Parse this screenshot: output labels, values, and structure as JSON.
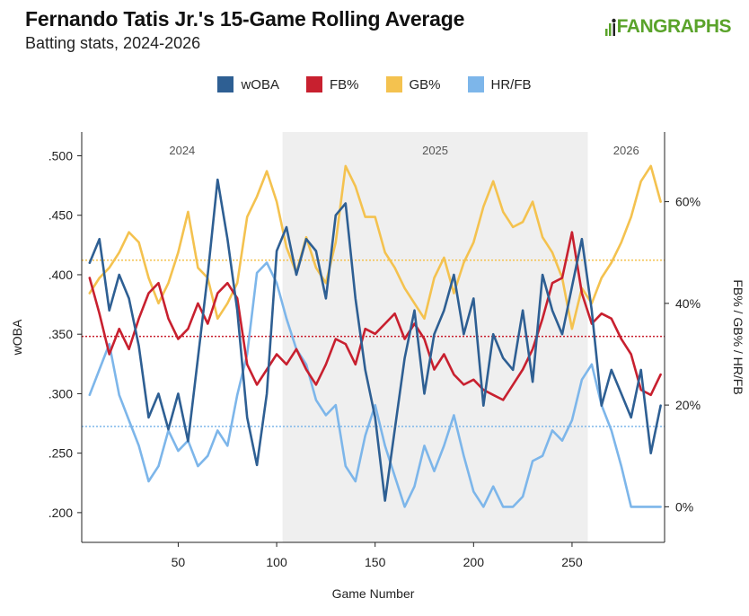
{
  "header": {
    "title": "Fernando Tatis Jr.'s 15-Game Rolling Average",
    "subtitle": "Batting stats, 2024-2026",
    "logo_text": "FANGRAPHS"
  },
  "colors": {
    "woba": "#2e5f93",
    "fb": "#c8202f",
    "gb": "#f4c24f",
    "hrfb": "#7db6ea",
    "shade": "#efefef",
    "logo": "#5aa32a"
  },
  "chart_data": {
    "type": "line",
    "xlabel": "Game Number",
    "ylabel_left": "wOBA",
    "ylabel_right": "FB% / GB% / HR/FB",
    "xlim": [
      1,
      297
    ],
    "ylim_left": [
      0.175,
      0.52
    ],
    "ylim_right": [
      -0.07,
      0.737
    ],
    "x_ticks": [
      50,
      100,
      150,
      200,
      250
    ],
    "y_ticks_left": [
      ".200",
      ".250",
      ".300",
      ".350",
      ".400",
      ".450",
      ".500"
    ],
    "y_tick_values_left": [
      0.2,
      0.25,
      0.3,
      0.35,
      0.4,
      0.45,
      0.5
    ],
    "y_ticks_right": [
      "0%",
      "20%",
      "40%",
      "60%"
    ],
    "y_tick_values_right": [
      0,
      0.2,
      0.4,
      0.6
    ],
    "grid": false,
    "legend_position": "top-center",
    "seasons": [
      {
        "label": "2024",
        "start": 1,
        "end": 103,
        "shaded": false
      },
      {
        "label": "2025",
        "start": 103,
        "end": 258,
        "shaded": true
      },
      {
        "label": "2026",
        "start": 258,
        "end": 297,
        "shaded": false
      }
    ],
    "averages": [
      {
        "series": "GB%",
        "value": 0.485
      },
      {
        "series": "FB%",
        "value": 0.335
      },
      {
        "series": "HR/FB",
        "value": 0.158
      }
    ],
    "series": [
      {
        "name": "wOBA",
        "axis": "left",
        "points": [
          [
            5,
            0.41
          ],
          [
            10,
            0.43
          ],
          [
            15,
            0.37
          ],
          [
            20,
            0.4
          ],
          [
            25,
            0.38
          ],
          [
            30,
            0.34
          ],
          [
            35,
            0.28
          ],
          [
            40,
            0.3
          ],
          [
            45,
            0.27
          ],
          [
            50,
            0.3
          ],
          [
            55,
            0.26
          ],
          [
            60,
            0.33
          ],
          [
            65,
            0.4
          ],
          [
            70,
            0.48
          ],
          [
            75,
            0.43
          ],
          [
            80,
            0.37
          ],
          [
            85,
            0.28
          ],
          [
            90,
            0.24
          ],
          [
            95,
            0.3
          ],
          [
            100,
            0.42
          ],
          [
            105,
            0.44
          ],
          [
            110,
            0.4
          ],
          [
            115,
            0.43
          ],
          [
            120,
            0.42
          ],
          [
            125,
            0.38
          ],
          [
            130,
            0.45
          ],
          [
            135,
            0.46
          ],
          [
            140,
            0.38
          ],
          [
            145,
            0.32
          ],
          [
            150,
            0.28
          ],
          [
            155,
            0.21
          ],
          [
            160,
            0.27
          ],
          [
            165,
            0.33
          ],
          [
            170,
            0.37
          ],
          [
            175,
            0.3
          ],
          [
            180,
            0.35
          ],
          [
            185,
            0.37
          ],
          [
            190,
            0.4
          ],
          [
            195,
            0.35
          ],
          [
            200,
            0.38
          ],
          [
            205,
            0.29
          ],
          [
            210,
            0.35
          ],
          [
            215,
            0.33
          ],
          [
            220,
            0.32
          ],
          [
            225,
            0.37
          ],
          [
            230,
            0.31
          ],
          [
            235,
            0.4
          ],
          [
            240,
            0.37
          ],
          [
            245,
            0.35
          ],
          [
            250,
            0.39
          ],
          [
            255,
            0.43
          ],
          [
            260,
            0.37
          ],
          [
            265,
            0.29
          ],
          [
            270,
            0.32
          ],
          [
            275,
            0.3
          ],
          [
            280,
            0.28
          ],
          [
            285,
            0.32
          ],
          [
            290,
            0.25
          ],
          [
            295,
            0.29
          ]
        ]
      },
      {
        "name": "FB%",
        "axis": "right",
        "points": [
          [
            5,
            0.45
          ],
          [
            10,
            0.38
          ],
          [
            15,
            0.3
          ],
          [
            20,
            0.35
          ],
          [
            25,
            0.31
          ],
          [
            30,
            0.37
          ],
          [
            35,
            0.42
          ],
          [
            40,
            0.44
          ],
          [
            45,
            0.37
          ],
          [
            50,
            0.33
          ],
          [
            55,
            0.35
          ],
          [
            60,
            0.4
          ],
          [
            65,
            0.36
          ],
          [
            70,
            0.42
          ],
          [
            75,
            0.44
          ],
          [
            80,
            0.41
          ],
          [
            85,
            0.28
          ],
          [
            90,
            0.24
          ],
          [
            95,
            0.27
          ],
          [
            100,
            0.3
          ],
          [
            105,
            0.28
          ],
          [
            110,
            0.31
          ],
          [
            115,
            0.27
          ],
          [
            120,
            0.24
          ],
          [
            125,
            0.28
          ],
          [
            130,
            0.33
          ],
          [
            135,
            0.32
          ],
          [
            140,
            0.28
          ],
          [
            145,
            0.35
          ],
          [
            150,
            0.34
          ],
          [
            155,
            0.36
          ],
          [
            160,
            0.38
          ],
          [
            165,
            0.33
          ],
          [
            170,
            0.36
          ],
          [
            175,
            0.33
          ],
          [
            180,
            0.27
          ],
          [
            185,
            0.3
          ],
          [
            190,
            0.26
          ],
          [
            195,
            0.24
          ],
          [
            200,
            0.25
          ],
          [
            205,
            0.23
          ],
          [
            210,
            0.22
          ],
          [
            215,
            0.21
          ],
          [
            220,
            0.24
          ],
          [
            225,
            0.27
          ],
          [
            230,
            0.31
          ],
          [
            235,
            0.37
          ],
          [
            240,
            0.44
          ],
          [
            245,
            0.45
          ],
          [
            250,
            0.54
          ],
          [
            255,
            0.42
          ],
          [
            260,
            0.36
          ],
          [
            265,
            0.38
          ],
          [
            270,
            0.37
          ],
          [
            275,
            0.33
          ],
          [
            280,
            0.3
          ],
          [
            285,
            0.23
          ],
          [
            290,
            0.22
          ],
          [
            295,
            0.26
          ]
        ]
      },
      {
        "name": "GB%",
        "axis": "right",
        "points": [
          [
            5,
            0.42
          ],
          [
            10,
            0.45
          ],
          [
            15,
            0.47
          ],
          [
            20,
            0.5
          ],
          [
            25,
            0.54
          ],
          [
            30,
            0.52
          ],
          [
            35,
            0.45
          ],
          [
            40,
            0.4
          ],
          [
            45,
            0.44
          ],
          [
            50,
            0.5
          ],
          [
            55,
            0.58
          ],
          [
            60,
            0.47
          ],
          [
            65,
            0.45
          ],
          [
            70,
            0.37
          ],
          [
            75,
            0.4
          ],
          [
            80,
            0.44
          ],
          [
            85,
            0.57
          ],
          [
            90,
            0.61
          ],
          [
            95,
            0.66
          ],
          [
            100,
            0.6
          ],
          [
            105,
            0.51
          ],
          [
            110,
            0.46
          ],
          [
            115,
            0.53
          ],
          [
            120,
            0.47
          ],
          [
            125,
            0.44
          ],
          [
            130,
            0.52
          ],
          [
            135,
            0.67
          ],
          [
            140,
            0.63
          ],
          [
            145,
            0.57
          ],
          [
            150,
            0.57
          ],
          [
            155,
            0.5
          ],
          [
            160,
            0.47
          ],
          [
            165,
            0.43
          ],
          [
            170,
            0.4
          ],
          [
            175,
            0.37
          ],
          [
            180,
            0.45
          ],
          [
            185,
            0.49
          ],
          [
            190,
            0.42
          ],
          [
            195,
            0.48
          ],
          [
            200,
            0.52
          ],
          [
            205,
            0.59
          ],
          [
            210,
            0.64
          ],
          [
            215,
            0.58
          ],
          [
            220,
            0.55
          ],
          [
            225,
            0.56
          ],
          [
            230,
            0.6
          ],
          [
            235,
            0.53
          ],
          [
            240,
            0.5
          ],
          [
            245,
            0.45
          ],
          [
            250,
            0.35
          ],
          [
            255,
            0.43
          ],
          [
            260,
            0.4
          ],
          [
            265,
            0.45
          ],
          [
            270,
            0.48
          ],
          [
            275,
            0.52
          ],
          [
            280,
            0.57
          ],
          [
            285,
            0.64
          ],
          [
            290,
            0.67
          ],
          [
            295,
            0.6
          ]
        ]
      },
      {
        "name": "HR/FB",
        "axis": "right",
        "points": [
          [
            5,
            0.22
          ],
          [
            10,
            0.27
          ],
          [
            15,
            0.32
          ],
          [
            20,
            0.22
          ],
          [
            25,
            0.17
          ],
          [
            30,
            0.12
          ],
          [
            35,
            0.05
          ],
          [
            40,
            0.08
          ],
          [
            45,
            0.15
          ],
          [
            50,
            0.11
          ],
          [
            55,
            0.13
          ],
          [
            60,
            0.08
          ],
          [
            65,
            0.1
          ],
          [
            70,
            0.15
          ],
          [
            75,
            0.12
          ],
          [
            80,
            0.22
          ],
          [
            85,
            0.3
          ],
          [
            90,
            0.46
          ],
          [
            95,
            0.48
          ],
          [
            100,
            0.44
          ],
          [
            105,
            0.37
          ],
          [
            110,
            0.31
          ],
          [
            115,
            0.28
          ],
          [
            120,
            0.21
          ],
          [
            125,
            0.18
          ],
          [
            130,
            0.2
          ],
          [
            135,
            0.08
          ],
          [
            140,
            0.05
          ],
          [
            145,
            0.14
          ],
          [
            150,
            0.2
          ],
          [
            155,
            0.12
          ],
          [
            160,
            0.06
          ],
          [
            165,
            0.0
          ],
          [
            170,
            0.04
          ],
          [
            175,
            0.12
          ],
          [
            180,
            0.07
          ],
          [
            185,
            0.12
          ],
          [
            190,
            0.18
          ],
          [
            195,
            0.1
          ],
          [
            200,
            0.03
          ],
          [
            205,
            0.0
          ],
          [
            210,
            0.04
          ],
          [
            215,
            0.0
          ],
          [
            220,
            0.0
          ],
          [
            225,
            0.02
          ],
          [
            230,
            0.09
          ],
          [
            235,
            0.1
          ],
          [
            240,
            0.15
          ],
          [
            245,
            0.13
          ],
          [
            250,
            0.17
          ],
          [
            255,
            0.25
          ],
          [
            260,
            0.28
          ],
          [
            265,
            0.2
          ],
          [
            270,
            0.15
          ],
          [
            275,
            0.08
          ],
          [
            280,
            0.0
          ],
          [
            285,
            0.0
          ],
          [
            290,
            0.0
          ],
          [
            295,
            0.0
          ]
        ]
      }
    ]
  }
}
